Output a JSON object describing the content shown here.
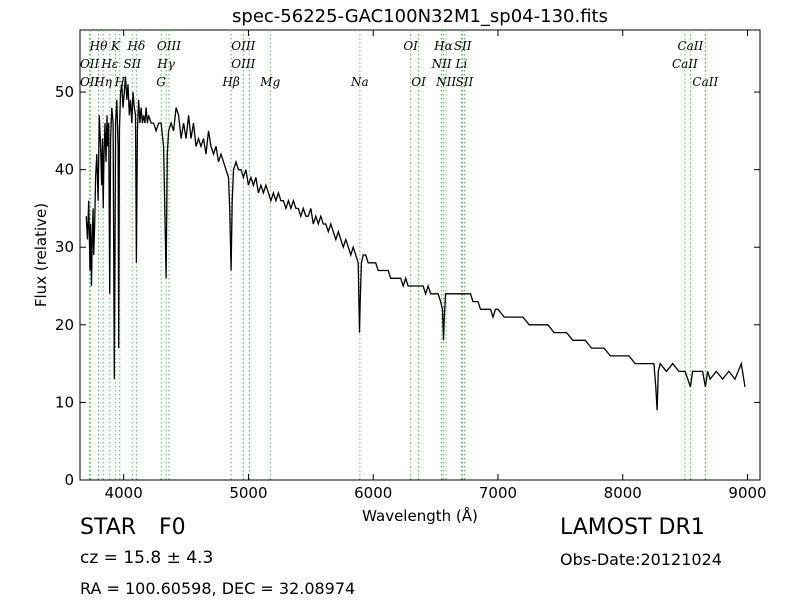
{
  "chart_data": {
    "type": "line",
    "title": "spec-56225-GAC100N32M1_sp04-130.fits",
    "xlabel": "Wavelength (Å)",
    "ylabel": "Flux (relative)",
    "xlim": [
      3650,
      9100
    ],
    "ylim": [
      0,
      58
    ],
    "xticks": [
      4000,
      5000,
      6000,
      7000,
      8000,
      9000
    ],
    "yticks": [
      0,
      10,
      20,
      30,
      40,
      50
    ],
    "grid": false,
    "line_color": "#000000",
    "line_marker_color": "#55bb55",
    "series": [
      {
        "values": [
          [
            3700,
            34
          ],
          [
            3710,
            31
          ],
          [
            3720,
            36
          ],
          [
            3730,
            27
          ],
          [
            3735,
            33
          ],
          [
            3742,
            25
          ],
          [
            3748,
            31
          ],
          [
            3755,
            35
          ],
          [
            3760,
            29
          ],
          [
            3768,
            33
          ],
          [
            3775,
            39
          ],
          [
            3785,
            42
          ],
          [
            3795,
            36
          ],
          [
            3805,
            47
          ],
          [
            3815,
            43
          ],
          [
            3823,
            38
          ],
          [
            3830,
            44
          ],
          [
            3836,
            35
          ],
          [
            3842,
            42
          ],
          [
            3850,
            46
          ],
          [
            3858,
            41
          ],
          [
            3866,
            47
          ],
          [
            3872,
            43
          ],
          [
            3880,
            46
          ],
          [
            3888,
            24
          ],
          [
            3895,
            44
          ],
          [
            3905,
            48
          ],
          [
            3915,
            46
          ],
          [
            3925,
            13
          ],
          [
            3935,
            46
          ],
          [
            3945,
            49
          ],
          [
            3955,
            43
          ],
          [
            3960,
            17
          ],
          [
            3966,
            45
          ],
          [
            3975,
            50
          ],
          [
            3985,
            51
          ],
          [
            3995,
            48
          ],
          [
            4005,
            50
          ],
          [
            4015,
            52
          ],
          [
            4025,
            49
          ],
          [
            4035,
            51
          ],
          [
            4045,
            47
          ],
          [
            4055,
            49
          ],
          [
            4065,
            46
          ],
          [
            4075,
            50
          ],
          [
            4085,
            48
          ],
          [
            4095,
            47
          ],
          [
            4102,
            28
          ],
          [
            4110,
            45
          ],
          [
            4120,
            49
          ],
          [
            4130,
            46
          ],
          [
            4140,
            48
          ],
          [
            4150,
            46
          ],
          [
            4160,
            47
          ],
          [
            4170,
            46
          ],
          [
            4180,
            48
          ],
          [
            4190,
            46
          ],
          [
            4200,
            47
          ],
          [
            4220,
            46
          ],
          [
            4240,
            46
          ],
          [
            4260,
            45
          ],
          [
            4280,
            46
          ],
          [
            4300,
            46
          ],
          [
            4320,
            43
          ],
          [
            4340,
            26
          ],
          [
            4350,
            42
          ],
          [
            4360,
            45
          ],
          [
            4380,
            46
          ],
          [
            4400,
            45
          ],
          [
            4420,
            48
          ],
          [
            4440,
            47
          ],
          [
            4460,
            44
          ],
          [
            4480,
            46
          ],
          [
            4500,
            44
          ],
          [
            4520,
            47
          ],
          [
            4540,
            44
          ],
          [
            4560,
            46
          ],
          [
            4580,
            43
          ],
          [
            4600,
            44
          ],
          [
            4620,
            43
          ],
          [
            4640,
            44
          ],
          [
            4660,
            42
          ],
          [
            4680,
            45
          ],
          [
            4700,
            43
          ],
          [
            4720,
            42
          ],
          [
            4740,
            43
          ],
          [
            4760,
            41
          ],
          [
            4780,
            42
          ],
          [
            4800,
            41
          ],
          [
            4820,
            40
          ],
          [
            4840,
            39
          ],
          [
            4850,
            35
          ],
          [
            4861,
            27
          ],
          [
            4870,
            36
          ],
          [
            4880,
            40
          ],
          [
            4900,
            41
          ],
          [
            4920,
            40
          ],
          [
            4940,
            40
          ],
          [
            4960,
            39
          ],
          [
            4980,
            40
          ],
          [
            5000,
            38
          ],
          [
            5020,
            39
          ],
          [
            5040,
            38
          ],
          [
            5060,
            39
          ],
          [
            5080,
            37
          ],
          [
            5100,
            38
          ],
          [
            5120,
            37
          ],
          [
            5140,
            38
          ],
          [
            5160,
            37
          ],
          [
            5180,
            36
          ],
          [
            5200,
            37
          ],
          [
            5220,
            36
          ],
          [
            5240,
            37
          ],
          [
            5260,
            36
          ],
          [
            5280,
            36
          ],
          [
            5300,
            35
          ],
          [
            5320,
            36
          ],
          [
            5340,
            35
          ],
          [
            5360,
            36
          ],
          [
            5380,
            35
          ],
          [
            5400,
            35
          ],
          [
            5420,
            34
          ],
          [
            5440,
            35
          ],
          [
            5460,
            34
          ],
          [
            5480,
            34
          ],
          [
            5500,
            35
          ],
          [
            5520,
            33
          ],
          [
            5540,
            34
          ],
          [
            5560,
            33
          ],
          [
            5580,
            34
          ],
          [
            5600,
            33
          ],
          [
            5620,
            33
          ],
          [
            5640,
            32
          ],
          [
            5660,
            33
          ],
          [
            5680,
            32
          ],
          [
            5700,
            31
          ],
          [
            5720,
            32
          ],
          [
            5740,
            31
          ],
          [
            5760,
            30
          ],
          [
            5780,
            31
          ],
          [
            5800,
            30
          ],
          [
            5820,
            29
          ],
          [
            5840,
            30
          ],
          [
            5860,
            29
          ],
          [
            5880,
            28
          ],
          [
            5890,
            19
          ],
          [
            5896,
            23
          ],
          [
            5905,
            28
          ],
          [
            5920,
            29
          ],
          [
            5940,
            29
          ],
          [
            5960,
            28
          ],
          [
            5980,
            28
          ],
          [
            6000,
            28
          ],
          [
            6020,
            28
          ],
          [
            6040,
            27
          ],
          [
            6060,
            27
          ],
          [
            6080,
            27
          ],
          [
            6100,
            27
          ],
          [
            6120,
            27
          ],
          [
            6140,
            26
          ],
          [
            6160,
            26
          ],
          [
            6180,
            26
          ],
          [
            6200,
            26
          ],
          [
            6220,
            26
          ],
          [
            6240,
            25
          ],
          [
            6260,
            26
          ],
          [
            6280,
            25
          ],
          [
            6300,
            25
          ],
          [
            6320,
            25
          ],
          [
            6340,
            25
          ],
          [
            6360,
            25
          ],
          [
            6380,
            25
          ],
          [
            6400,
            25
          ],
          [
            6420,
            24
          ],
          [
            6440,
            25
          ],
          [
            6460,
            24
          ],
          [
            6480,
            24
          ],
          [
            6500,
            24
          ],
          [
            6520,
            24
          ],
          [
            6540,
            23
          ],
          [
            6555,
            22
          ],
          [
            6563,
            18
          ],
          [
            6570,
            21
          ],
          [
            6580,
            24
          ],
          [
            6600,
            24
          ],
          [
            6620,
            24
          ],
          [
            6640,
            24
          ],
          [
            6660,
            24
          ],
          [
            6680,
            24
          ],
          [
            6700,
            24
          ],
          [
            6720,
            24
          ],
          [
            6740,
            24
          ],
          [
            6760,
            24
          ],
          [
            6780,
            24
          ],
          [
            6800,
            23
          ],
          [
            6820,
            23
          ],
          [
            6840,
            23
          ],
          [
            6860,
            22
          ],
          [
            6880,
            22
          ],
          [
            6900,
            22
          ],
          [
            6920,
            22
          ],
          [
            6940,
            22
          ],
          [
            6960,
            21
          ],
          [
            6980,
            22
          ],
          [
            7000,
            22
          ],
          [
            7050,
            21
          ],
          [
            7100,
            21
          ],
          [
            7150,
            21
          ],
          [
            7200,
            21
          ],
          [
            7250,
            20
          ],
          [
            7300,
            20
          ],
          [
            7350,
            20
          ],
          [
            7400,
            20
          ],
          [
            7450,
            19
          ],
          [
            7500,
            19
          ],
          [
            7550,
            19
          ],
          [
            7600,
            18
          ],
          [
            7650,
            18
          ],
          [
            7700,
            18
          ],
          [
            7750,
            17
          ],
          [
            7800,
            17
          ],
          [
            7850,
            17
          ],
          [
            7900,
            16
          ],
          [
            7950,
            16
          ],
          [
            8000,
            16
          ],
          [
            8050,
            16
          ],
          [
            8100,
            15
          ],
          [
            8150,
            15
          ],
          [
            8200,
            15
          ],
          [
            8250,
            15
          ],
          [
            8265,
            12
          ],
          [
            8275,
            9
          ],
          [
            8285,
            14
          ],
          [
            8300,
            15
          ],
          [
            8350,
            14
          ],
          [
            8400,
            15
          ],
          [
            8450,
            14
          ],
          [
            8500,
            14
          ],
          [
            8542,
            12
          ],
          [
            8560,
            14
          ],
          [
            8600,
            14
          ],
          [
            8640,
            14
          ],
          [
            8662,
            12
          ],
          [
            8680,
            14
          ],
          [
            8700,
            13
          ],
          [
            8750,
            14
          ],
          [
            8800,
            13
          ],
          [
            8850,
            14
          ],
          [
            8900,
            13
          ],
          [
            8950,
            15
          ],
          [
            8980,
            12
          ]
        ]
      }
    ],
    "annotations": [
      {
        "label": "Hθ",
        "x": 3798,
        "row": 0
      },
      {
        "label": "K",
        "x": 3934,
        "row": 0
      },
      {
        "label": "Hδ",
        "x": 4102,
        "row": 0
      },
      {
        "label": "OIII",
        "x": 4363,
        "row": 0
      },
      {
        "label": "OIII",
        "x": 4959,
        "row": 0
      },
      {
        "label": "OI",
        "x": 6300,
        "row": 0
      },
      {
        "label": "Hα",
        "x": 6563,
        "row": 0
      },
      {
        "label": "SII",
        "x": 6717,
        "row": 0
      },
      {
        "label": "CaII",
        "x": 8542,
        "row": 0
      },
      {
        "label": "OII",
        "x": 3727,
        "row": 1
      },
      {
        "label": "Hε",
        "x": 3889,
        "row": 1
      },
      {
        "label": "SII",
        "x": 4069,
        "row": 1
      },
      {
        "label": "Hγ",
        "x": 4340,
        "row": 1
      },
      {
        "label": "OIII",
        "x": 4959,
        "row": 1
      },
      {
        "label": "NII",
        "x": 6548,
        "row": 1
      },
      {
        "label": "Li",
        "x": 6707,
        "row": 1
      },
      {
        "label": "CaII",
        "x": 8498,
        "row": 1
      },
      {
        "label": "OII",
        "x": 3727,
        "row": 2
      },
      {
        "label": "Hη",
        "x": 3835,
        "row": 2
      },
      {
        "label": "H",
        "x": 3969,
        "row": 2
      },
      {
        "label": "G",
        "x": 4300,
        "row": 2
      },
      {
        "label": "Hβ",
        "x": 4861,
        "row": 2
      },
      {
        "label": "Mg",
        "x": 5175,
        "row": 2
      },
      {
        "label": "Na",
        "x": 5893,
        "row": 2
      },
      {
        "label": "OI",
        "x": 6364,
        "row": 2
      },
      {
        "label": "NII",
        "x": 6584,
        "row": 2
      },
      {
        "label": "SII",
        "x": 6731,
        "row": 2
      },
      {
        "label": "CaII",
        "x": 8662,
        "row": 2
      }
    ],
    "line_markers": [
      3727,
      3735,
      3798,
      3835,
      3889,
      3934,
      3969,
      4069,
      4102,
      4300,
      4340,
      4363,
      4861,
      4959,
      5007,
      5175,
      5893,
      6300,
      6364,
      6548,
      6563,
      6584,
      6707,
      6717,
      6731,
      8498,
      8542,
      8662
    ]
  },
  "info": {
    "class_label": "STAR",
    "subclass_label": "F0",
    "redshift_text": "cz = 15.8  ± 4.3",
    "survey_label": "LAMOST DR1",
    "obs_date_text": "Obs-Date:20121024",
    "coords_text": "RA = 100.60598, DEC = 32.08974"
  }
}
